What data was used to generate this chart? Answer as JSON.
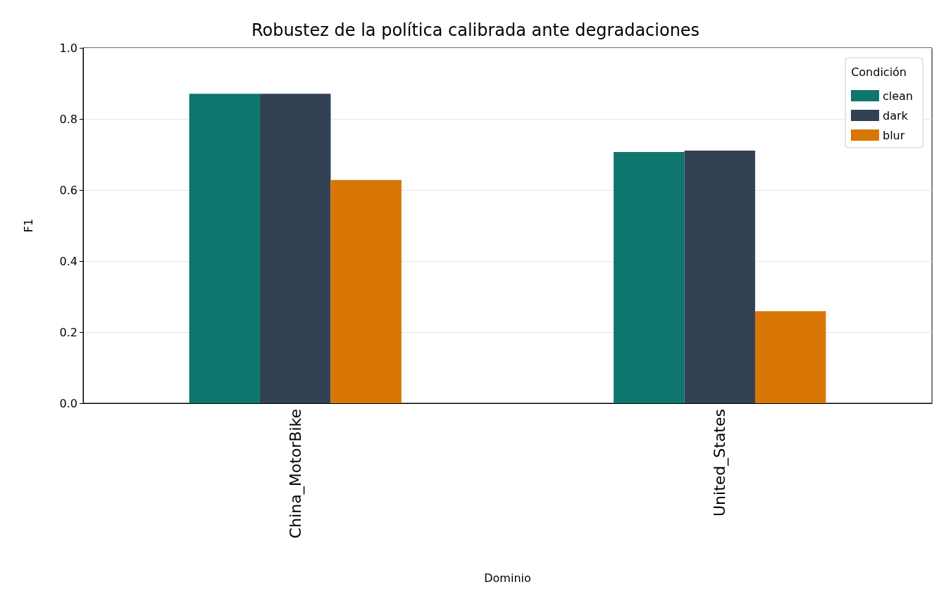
{
  "chart_data": {
    "type": "bar",
    "title": "Robustez de la política calibrada ante degradaciones",
    "xlabel": "Dominio",
    "ylabel": "F1",
    "legend_title": "Condición",
    "categories": [
      "China_MotorBike",
      "United_States"
    ],
    "series": [
      {
        "name": "clean",
        "color": "#0f766e",
        "values": [
          0.871,
          0.707
        ]
      },
      {
        "name": "dark",
        "color": "#334155",
        "values": [
          0.871,
          0.711
        ]
      },
      {
        "name": "blur",
        "color": "#d97706",
        "values": [
          0.628,
          0.259
        ]
      }
    ],
    "ylim": [
      0,
      1
    ],
    "yticks": [
      {
        "value": 0,
        "label": "0.0"
      },
      {
        "value": 0.2,
        "label": "0.2"
      },
      {
        "value": 0.4,
        "label": "0.4"
      },
      {
        "value": 0.6,
        "label": "0.6"
      },
      {
        "value": 0.8,
        "label": "0.8"
      },
      {
        "value": 1,
        "label": "1.0"
      }
    ],
    "grid": "y",
    "legend": "top right"
  }
}
